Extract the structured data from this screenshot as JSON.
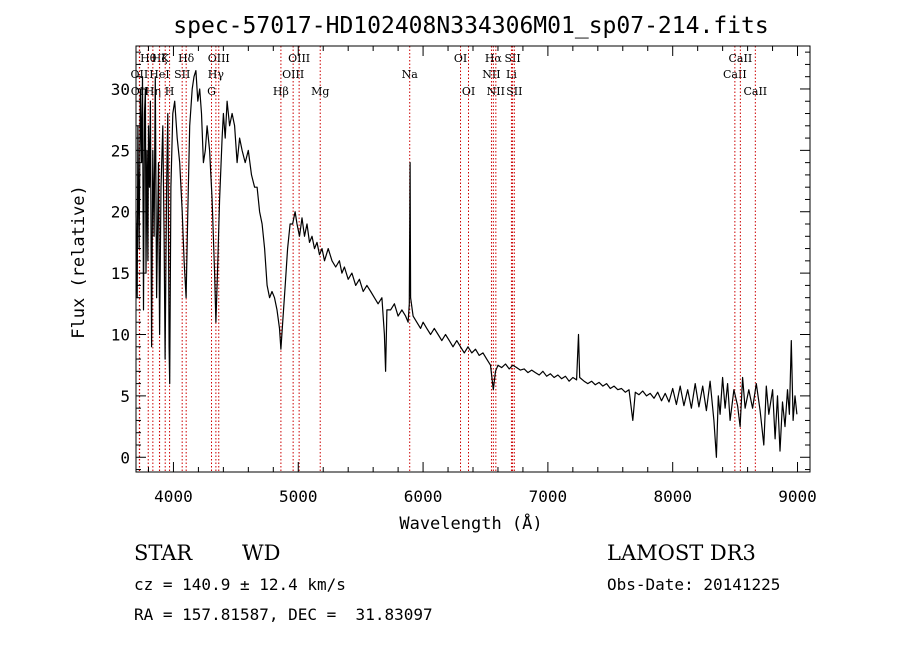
{
  "chart_data": {
    "type": "line",
    "title": "spec-57017-HD102408N334306M01_sp07-214.fits",
    "xlabel": "Wavelength (Å)",
    "ylabel": "Flux (relative)",
    "xlim": [
      3700,
      9100
    ],
    "ylim": [
      -1.2,
      33.5
    ],
    "xticks": [
      4000,
      5000,
      6000,
      7000,
      8000,
      9000
    ],
    "yticks": [
      0,
      5,
      10,
      15,
      20,
      25,
      30
    ],
    "grid": false,
    "series": [
      {
        "name": "flux",
        "points": [
          [
            3700,
            20
          ],
          [
            3710,
            13
          ],
          [
            3715,
            27
          ],
          [
            3725,
            17
          ],
          [
            3735,
            30
          ],
          [
            3745,
            24
          ],
          [
            3752,
            31
          ],
          [
            3760,
            12
          ],
          [
            3768,
            28
          ],
          [
            3775,
            30
          ],
          [
            3780,
            15
          ],
          [
            3788,
            25
          ],
          [
            3795,
            16
          ],
          [
            3800,
            27
          ],
          [
            3808,
            22
          ],
          [
            3815,
            29
          ],
          [
            3825,
            9
          ],
          [
            3835,
            25
          ],
          [
            3845,
            18
          ],
          [
            3855,
            31
          ],
          [
            3865,
            13
          ],
          [
            3880,
            24
          ],
          [
            3889,
            10
          ],
          [
            3900,
            22
          ],
          [
            3915,
            27
          ],
          [
            3925,
            18
          ],
          [
            3933,
            8
          ],
          [
            3945,
            22
          ],
          [
            3955,
            28
          ],
          [
            3965,
            9
          ],
          [
            3970,
            6
          ],
          [
            3980,
            22
          ],
          [
            3995,
            28
          ],
          [
            4010,
            29
          ],
          [
            4030,
            26
          ],
          [
            4050,
            24
          ],
          [
            4070,
            20
          ],
          [
            4085,
            16
          ],
          [
            4101,
            13
          ],
          [
            4115,
            20
          ],
          [
            4130,
            27
          ],
          [
            4150,
            30
          ],
          [
            4165,
            31
          ],
          [
            4180,
            31.5
          ],
          [
            4195,
            29
          ],
          [
            4210,
            30
          ],
          [
            4225,
            28
          ],
          [
            4240,
            24
          ],
          [
            4255,
            25
          ],
          [
            4270,
            27
          ],
          [
            4290,
            25
          ],
          [
            4310,
            21
          ],
          [
            4330,
            15
          ],
          [
            4340,
            11
          ],
          [
            4350,
            14
          ],
          [
            4370,
            21
          ],
          [
            4390,
            26
          ],
          [
            4400,
            28
          ],
          [
            4415,
            26
          ],
          [
            4430,
            29
          ],
          [
            4450,
            27
          ],
          [
            4470,
            28
          ],
          [
            4490,
            27
          ],
          [
            4510,
            24
          ],
          [
            4530,
            26
          ],
          [
            4550,
            25
          ],
          [
            4575,
            24
          ],
          [
            4600,
            25
          ],
          [
            4625,
            23
          ],
          [
            4650,
            22
          ],
          [
            4670,
            22
          ],
          [
            4690,
            20
          ],
          [
            4710,
            19
          ],
          [
            4730,
            17
          ],
          [
            4750,
            14
          ],
          [
            4770,
            13
          ],
          [
            4790,
            13.5
          ],
          [
            4810,
            13
          ],
          [
            4830,
            12
          ],
          [
            4850,
            10.5
          ],
          [
            4861,
            8.8
          ],
          [
            4875,
            11
          ],
          [
            4895,
            14
          ],
          [
            4915,
            17
          ],
          [
            4935,
            19
          ],
          [
            4955,
            19
          ],
          [
            4975,
            20
          ],
          [
            4990,
            19
          ],
          [
            5010,
            18
          ],
          [
            5030,
            19.5
          ],
          [
            5050,
            18
          ],
          [
            5070,
            19
          ],
          [
            5090,
            17.5
          ],
          [
            5110,
            18
          ],
          [
            5130,
            17
          ],
          [
            5150,
            17.5
          ],
          [
            5170,
            16.5
          ],
          [
            5190,
            17
          ],
          [
            5210,
            16
          ],
          [
            5240,
            17
          ],
          [
            5270,
            16
          ],
          [
            5300,
            15.5
          ],
          [
            5330,
            16
          ],
          [
            5350,
            15
          ],
          [
            5370,
            15.5
          ],
          [
            5400,
            14.5
          ],
          [
            5430,
            15
          ],
          [
            5460,
            14
          ],
          [
            5490,
            14.5
          ],
          [
            5520,
            13.5
          ],
          [
            5550,
            14
          ],
          [
            5580,
            13.5
          ],
          [
            5610,
            13
          ],
          [
            5640,
            12.5
          ],
          [
            5670,
            13
          ],
          [
            5690,
            10
          ],
          [
            5700,
            7
          ],
          [
            5710,
            12
          ],
          [
            5740,
            12
          ],
          [
            5770,
            12.5
          ],
          [
            5800,
            11.5
          ],
          [
            5830,
            12
          ],
          [
            5860,
            11.5
          ],
          [
            5880,
            11
          ],
          [
            5890,
            12.5
          ],
          [
            5896,
            24
          ],
          [
            5900,
            13
          ],
          [
            5920,
            11.5
          ],
          [
            5950,
            11
          ],
          [
            5980,
            10.5
          ],
          [
            6000,
            11
          ],
          [
            6030,
            10.5
          ],
          [
            6060,
            10
          ],
          [
            6090,
            10.5
          ],
          [
            6120,
            10
          ],
          [
            6150,
            9.5
          ],
          [
            6180,
            10
          ],
          [
            6210,
            9.5
          ],
          [
            6240,
            9
          ],
          [
            6270,
            9.5
          ],
          [
            6300,
            9
          ],
          [
            6330,
            8.5
          ],
          [
            6360,
            9
          ],
          [
            6390,
            8.5
          ],
          [
            6420,
            8.8
          ],
          [
            6450,
            8.3
          ],
          [
            6480,
            8.5
          ],
          [
            6510,
            8
          ],
          [
            6540,
            7.5
          ],
          [
            6563,
            5.5
          ],
          [
            6580,
            7
          ],
          [
            6600,
            7.5
          ],
          [
            6630,
            7.3
          ],
          [
            6660,
            7.6
          ],
          [
            6690,
            7.2
          ],
          [
            6720,
            7.5
          ],
          [
            6750,
            7.3
          ],
          [
            6780,
            7.1
          ],
          [
            6810,
            7.2
          ],
          [
            6840,
            6.9
          ],
          [
            6870,
            7.1
          ],
          [
            6900,
            6.9
          ],
          [
            6930,
            6.7
          ],
          [
            6960,
            7
          ],
          [
            6990,
            6.6
          ],
          [
            7020,
            6.8
          ],
          [
            7050,
            6.5
          ],
          [
            7080,
            6.7
          ],
          [
            7110,
            6.4
          ],
          [
            7140,
            6.6
          ],
          [
            7170,
            6.2
          ],
          [
            7200,
            6.5
          ],
          [
            7230,
            6.3
          ],
          [
            7245,
            10
          ],
          [
            7255,
            6.5
          ],
          [
            7290,
            6.2
          ],
          [
            7320,
            6
          ],
          [
            7350,
            6.2
          ],
          [
            7380,
            5.9
          ],
          [
            7410,
            6.1
          ],
          [
            7440,
            5.8
          ],
          [
            7470,
            6
          ],
          [
            7500,
            5.6
          ],
          [
            7530,
            5.8
          ],
          [
            7560,
            5.5
          ],
          [
            7590,
            5.6
          ],
          [
            7620,
            5.3
          ],
          [
            7650,
            5.5
          ],
          [
            7680,
            3
          ],
          [
            7700,
            5.3
          ],
          [
            7730,
            5.1
          ],
          [
            7760,
            5.4
          ],
          [
            7790,
            5
          ],
          [
            7820,
            5.2
          ],
          [
            7850,
            4.8
          ],
          [
            7880,
            5.3
          ],
          [
            7910,
            4.6
          ],
          [
            7940,
            5.2
          ],
          [
            7970,
            4.5
          ],
          [
            8000,
            5.6
          ],
          [
            8030,
            4.3
          ],
          [
            8060,
            5.8
          ],
          [
            8090,
            4.2
          ],
          [
            8120,
            5.5
          ],
          [
            8150,
            4
          ],
          [
            8180,
            6
          ],
          [
            8210,
            4.1
          ],
          [
            8240,
            5.8
          ],
          [
            8270,
            3.8
          ],
          [
            8300,
            6.2
          ],
          [
            8330,
            3
          ],
          [
            8350,
            0
          ],
          [
            8365,
            5
          ],
          [
            8380,
            3.5
          ],
          [
            8400,
            6.5
          ],
          [
            8420,
            4
          ],
          [
            8440,
            6
          ],
          [
            8460,
            3
          ],
          [
            8490,
            5.5
          ],
          [
            8520,
            4.2
          ],
          [
            8540,
            2.5
          ],
          [
            8560,
            6.5
          ],
          [
            8580,
            4
          ],
          [
            8610,
            5.5
          ],
          [
            8640,
            4
          ],
          [
            8670,
            6
          ],
          [
            8700,
            3.8
          ],
          [
            8730,
            1
          ],
          [
            8750,
            5.8
          ],
          [
            8770,
            3.5
          ],
          [
            8800,
            5.5
          ],
          [
            8820,
            1.5
          ],
          [
            8840,
            5
          ],
          [
            8860,
            0.5
          ],
          [
            8880,
            4.5
          ],
          [
            8900,
            2.5
          ],
          [
            8920,
            5.5
          ],
          [
            8935,
            3.5
          ],
          [
            8950,
            9.5
          ],
          [
            8965,
            3
          ],
          [
            8980,
            5
          ],
          [
            8995,
            3.5
          ]
        ]
      }
    ],
    "lines": [
      {
        "label": "Hθ",
        "wl": 3798,
        "row": 1
      },
      {
        "label": "Hη",
        "wl": 3835,
        "row": 3
      },
      {
        "label": "OII",
        "wl": 3727,
        "row": 2
      },
      {
        "label": "OII",
        "wl": 3729,
        "row": 3
      },
      {
        "label": "Hζ",
        "wl": 3889,
        "row": 1
      },
      {
        "label": "HeI",
        "wl": 3888,
        "row": 2
      },
      {
        "label": "K",
        "wl": 3934,
        "row": 1
      },
      {
        "label": "H",
        "wl": 3969,
        "row": 3
      },
      {
        "label": "Hδ",
        "wl": 4102,
        "row": 1
      },
      {
        "label": "SII",
        "wl": 4070,
        "row": 2
      },
      {
        "label": "OIII",
        "wl": 4363,
        "row": 1
      },
      {
        "label": "Hγ",
        "wl": 4340,
        "row": 2
      },
      {
        "label": "G",
        "wl": 4305,
        "row": 3
      },
      {
        "label": "Hβ",
        "wl": 4861,
        "row": 3
      },
      {
        "label": "OIII",
        "wl": 4959,
        "row": 2
      },
      {
        "label": "OIII",
        "wl": 5007,
        "row": 1
      },
      {
        "label": "Mg",
        "wl": 5176,
        "row": 3
      },
      {
        "label": "Na",
        "wl": 5893,
        "row": 2
      },
      {
        "label": "OI",
        "wl": 6300,
        "row": 1
      },
      {
        "label": "OI",
        "wl": 6364,
        "row": 3
      },
      {
        "label": "NII",
        "wl": 6548,
        "row": 2
      },
      {
        "label": "Hα",
        "wl": 6563,
        "row": 1
      },
      {
        "label": "NII",
        "wl": 6583,
        "row": 3
      },
      {
        "label": "SII",
        "wl": 6717,
        "row": 1
      },
      {
        "label": "Li",
        "wl": 6708,
        "row": 2
      },
      {
        "label": "SII",
        "wl": 6731,
        "row": 3
      },
      {
        "label": "CaII",
        "wl": 8498,
        "row": 2
      },
      {
        "label": "CaII",
        "wl": 8542,
        "row": 1
      },
      {
        "label": "CaII",
        "wl": 8662,
        "row": 3
      }
    ]
  },
  "info": {
    "class": "STAR",
    "subclass": "WD",
    "survey": "LAMOST DR3",
    "redshift": "cz = 140.9 ± 12.4 km/s",
    "obsdate": "Obs-Date: 20141225",
    "coords": "RA = 157.81587, DEC =  31.83097"
  }
}
